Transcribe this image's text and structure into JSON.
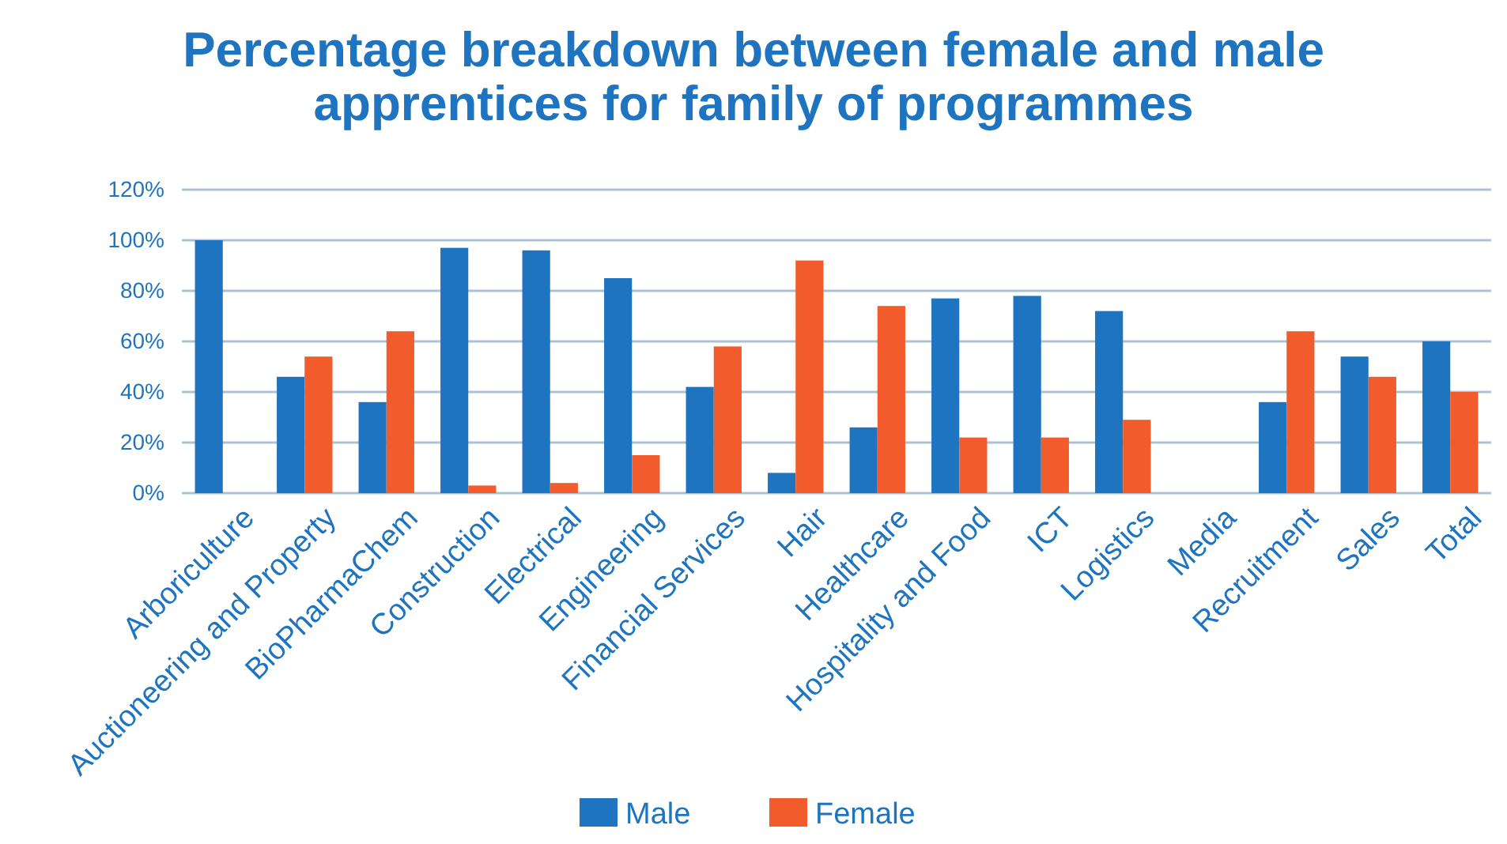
{
  "chart_data": {
    "type": "bar",
    "title": "Percentage breakdown between female and male apprentices for family of programmes",
    "categories": [
      "Arboriculture",
      "Auctioneering and Property",
      "BioPharmaChem",
      "Construction",
      "Electrical",
      "Engineering",
      "Financial Services",
      "Hair",
      "Healthcare",
      "Hospitality and Food",
      "ICT",
      "Logistics",
      "Media",
      "Recruitment",
      "Sales",
      "Total"
    ],
    "series": [
      {
        "name": "Male",
        "color": "#1f74bf",
        "values": [
          100,
          46,
          36,
          97,
          96,
          85,
          42,
          8,
          26,
          77,
          78,
          72,
          0,
          36,
          54,
          60
        ]
      },
      {
        "name": "Female",
        "color": "#f25c2c",
        "values": [
          0,
          54,
          64,
          3,
          4,
          15,
          58,
          92,
          74,
          22,
          22,
          29,
          0,
          64,
          46,
          40
        ]
      }
    ],
    "ylim": [
      0,
      120
    ],
    "yticks": [
      {
        "value": 0,
        "label": "0%"
      },
      {
        "value": 20,
        "label": "20%"
      },
      {
        "value": 40,
        "label": "40%"
      },
      {
        "value": 60,
        "label": "60%"
      },
      {
        "value": 80,
        "label": "80%"
      },
      {
        "value": 100,
        "label": "100%"
      },
      {
        "value": 120,
        "label": "120%"
      }
    ],
    "grid": "y",
    "legend": "bottom"
  }
}
